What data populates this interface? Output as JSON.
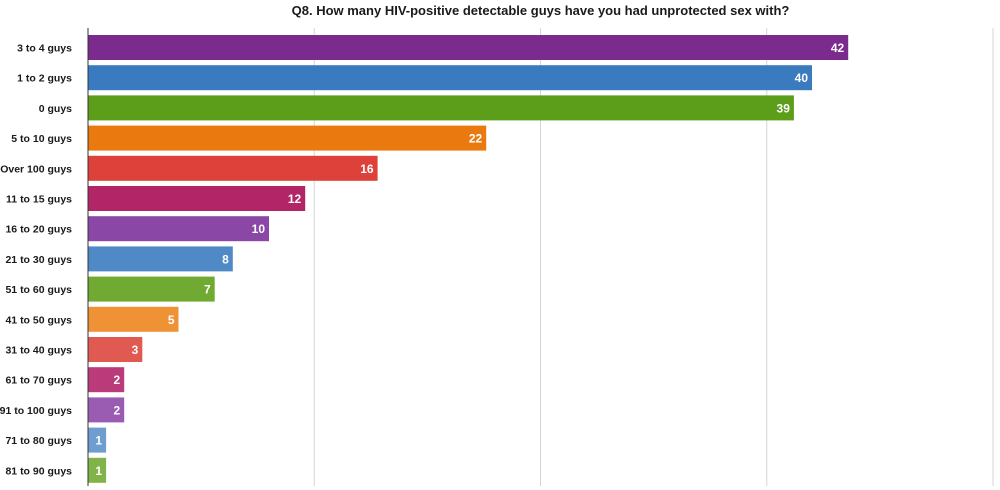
{
  "chart_data": {
    "type": "bar",
    "orientation": "horizontal",
    "title": "Q8. How many HIV-positive detectable guys have you had unprotected sex with?",
    "xlabel": "",
    "ylabel": "",
    "xlim": [
      0,
      50
    ],
    "grid": true,
    "categories": [
      "3 to 4 guys",
      "1 to 2 guys",
      "0 guys",
      "5 to 10 guys",
      "Over 100 guys",
      "11 to 15 guys",
      "16 to 20 guys",
      "21 to 30 guys",
      "51 to 60 guys",
      "41 to 50 guys",
      "31 to 40 guys",
      "61 to 70 guys",
      "91 to 100 guys",
      "71 to 80 guys",
      "81 to 90 guys"
    ],
    "values": [
      42,
      40,
      39,
      22,
      16,
      12,
      10,
      8,
      7,
      5,
      3,
      2,
      2,
      1,
      1
    ],
    "colors": [
      "#7b2a8e",
      "#3a7bbf",
      "#5c9e1a",
      "#ea7a10",
      "#de4139",
      "#b22567",
      "#8b47a6",
      "#4f8ac6",
      "#70aa32",
      "#ef9236",
      "#e05a52",
      "#bb3a7a",
      "#9a5cb2",
      "#6e9dd0",
      "#80b449"
    ]
  }
}
